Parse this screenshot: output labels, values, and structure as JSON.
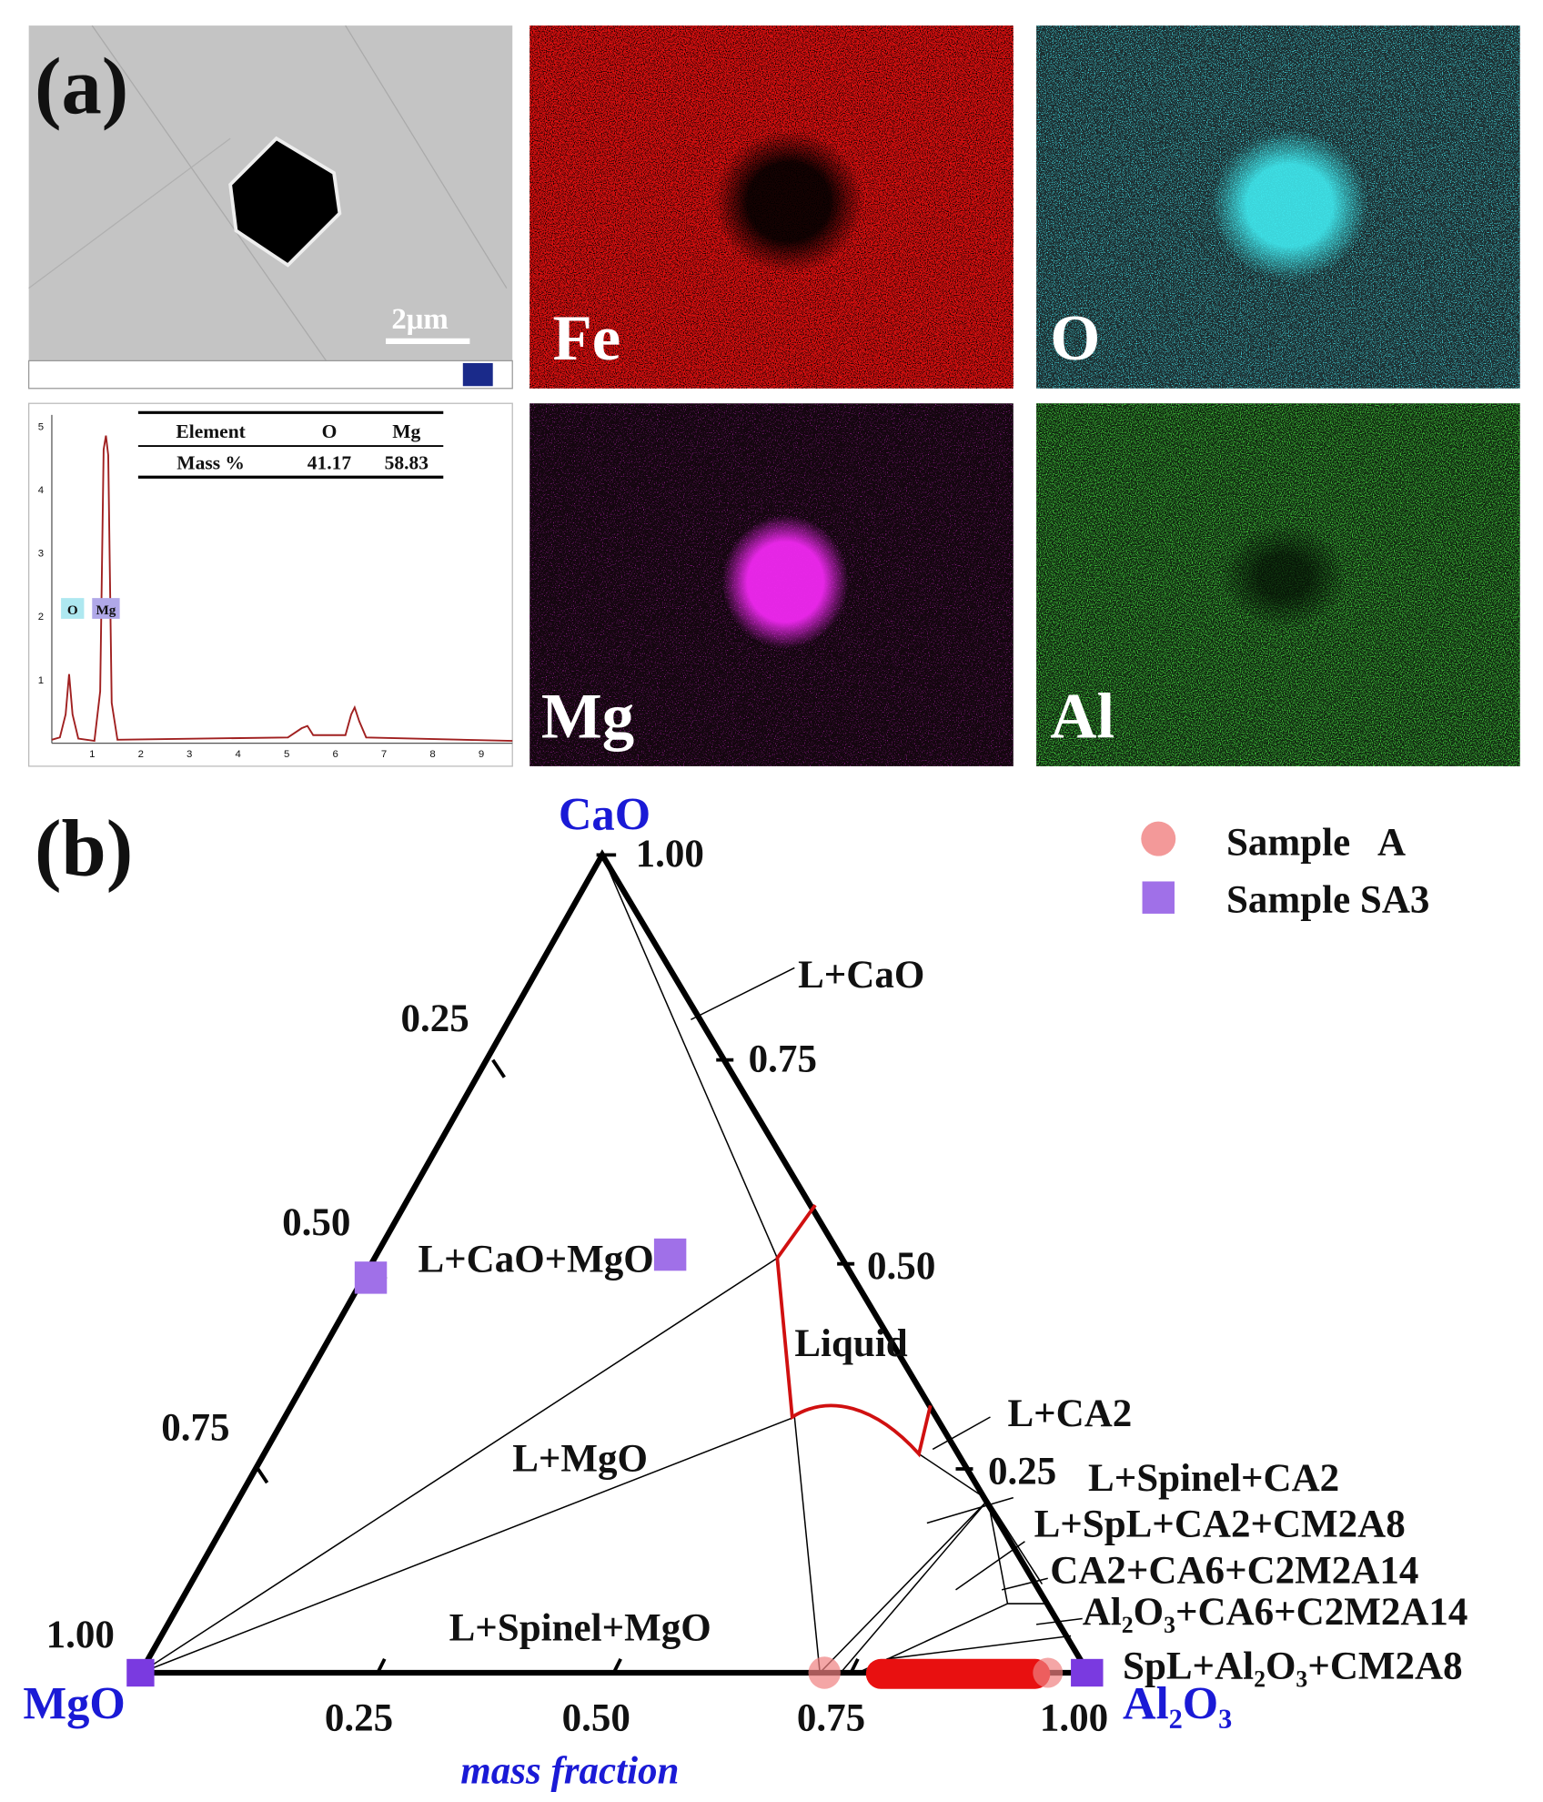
{
  "panel_a": {
    "label": "(a)",
    "scale_bar": "2μm",
    "maps": [
      {
        "label": "Fe"
      },
      {
        "label": "O"
      },
      {
        "label": "Mg"
      },
      {
        "label": "Al"
      }
    ],
    "spectrum": {
      "table": {
        "header": [
          "Element",
          "O",
          "Mg"
        ],
        "rows": [
          [
            "Mass %",
            "41.17",
            "58.83"
          ]
        ]
      },
      "peaks": [
        "O",
        "Mg"
      ],
      "yticks": [
        "1",
        "2",
        "3",
        "4",
        "5"
      ],
      "xticks": [
        "1",
        "2",
        "3",
        "4",
        "5",
        "6",
        "7",
        "8",
        "9"
      ]
    }
  },
  "panel_b": {
    "label": "(b)",
    "vertices": {
      "top": "CaO",
      "left": "MgO",
      "right": "Al₂O₃"
    },
    "axis_label": "mass fraction",
    "ticks": {
      "left": [
        "0.25",
        "0.50",
        "0.75",
        "1.00"
      ],
      "right": [
        "1.00",
        "0.75",
        "0.50",
        "0.25"
      ],
      "bottom": [
        "0.25",
        "0.50",
        "0.75",
        "1.00"
      ]
    },
    "regions": [
      "L+CaO",
      "L+CaO+MgO",
      "Liquid",
      "L+MgO",
      "L+Spinel+MgO",
      "L+CA2",
      "L+Spinel+CA2",
      "L+SpL+CA2+CM2A8",
      "CA2+CA6+C2M2A14",
      "Al₂O₃+CA6+C2M2A14",
      "SpL+Al₂O₃+CM2A8"
    ],
    "legend": [
      "Sample   A",
      "Sample SA3"
    ]
  }
}
